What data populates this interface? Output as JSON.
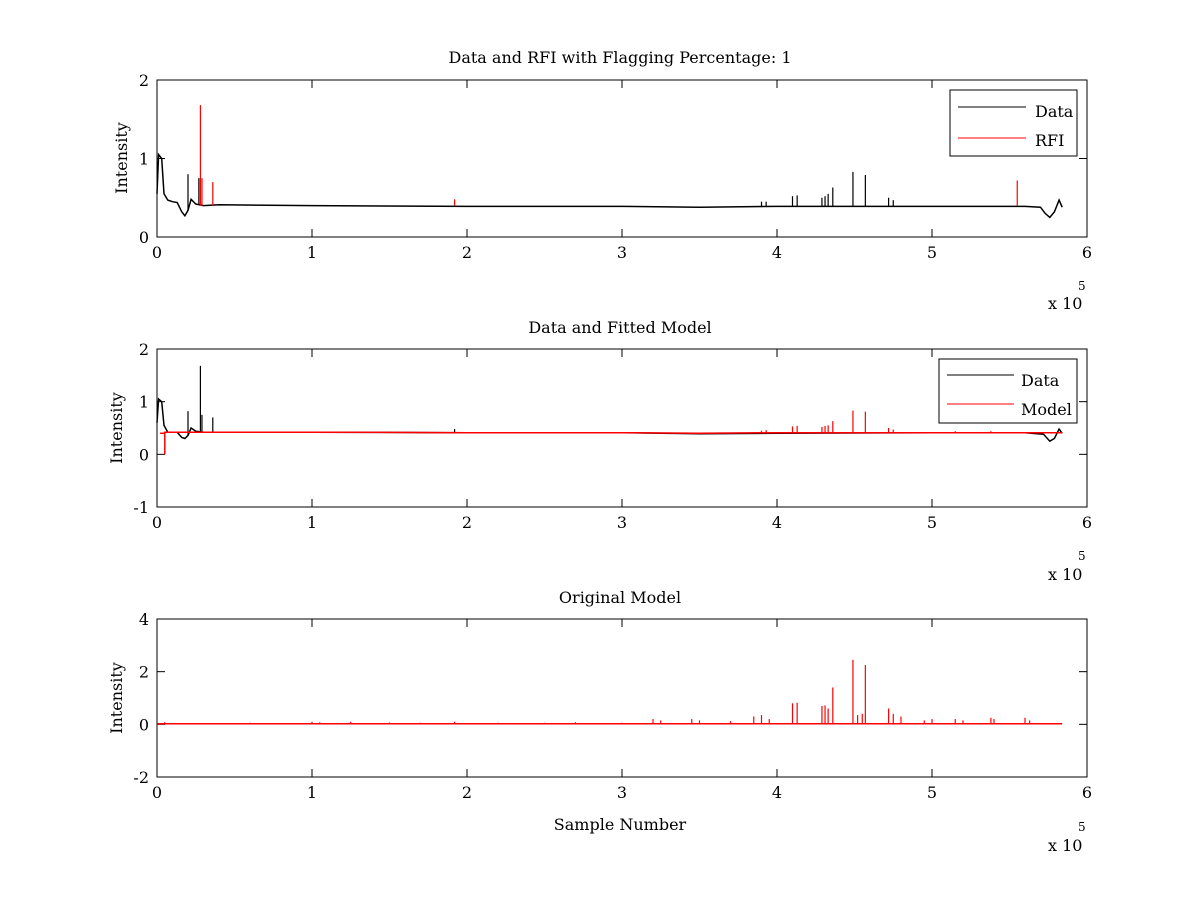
{
  "colors": {
    "data": "#000000",
    "rfi": "#ff0000",
    "model": "#ff0000",
    "background": "#ffffff"
  },
  "chart_data": [
    {
      "type": "line",
      "title": "Data and RFI with Flagging Percentage: 1",
      "xlabel": "",
      "ylabel": "Intensity",
      "xlim": [
        0,
        6
      ],
      "ylim": [
        0,
        2
      ],
      "xticks": [
        "0",
        "1",
        "2",
        "3",
        "4",
        "5",
        "6"
      ],
      "yticks": [
        "0",
        "1",
        "2"
      ],
      "x_multiplier": {
        "base": "x 10",
        "exponent": "5"
      },
      "legend": {
        "position": "top-right",
        "entries": [
          "Data",
          "RFI"
        ]
      },
      "series": [
        {
          "name": "Data",
          "color": "#000000",
          "baseline": [
            [
              0.0,
              0.55
            ],
            [
              0.01,
              1.05
            ],
            [
              0.03,
              1.0
            ],
            [
              0.045,
              0.55
            ],
            [
              0.07,
              0.47
            ],
            [
              0.1,
              0.45
            ],
            [
              0.13,
              0.44
            ],
            [
              0.16,
              0.32
            ],
            [
              0.18,
              0.27
            ],
            [
              0.2,
              0.34
            ],
            [
              0.22,
              0.48
            ],
            [
              0.25,
              0.42
            ],
            [
              0.3,
              0.4
            ],
            [
              0.4,
              0.41
            ],
            [
              1.0,
              0.4
            ],
            [
              2.0,
              0.39
            ],
            [
              3.0,
              0.39
            ],
            [
              3.5,
              0.38
            ],
            [
              4.0,
              0.39
            ],
            [
              5.0,
              0.39
            ],
            [
              5.6,
              0.39
            ],
            [
              5.7,
              0.38
            ],
            [
              5.73,
              0.3
            ],
            [
              5.76,
              0.25
            ],
            [
              5.79,
              0.32
            ],
            [
              5.82,
              0.47
            ],
            [
              5.84,
              0.38
            ]
          ],
          "spikes": [
            [
              0.2,
              0.8
            ],
            [
              0.27,
              0.75
            ],
            [
              4.1,
              0.52
            ],
            [
              4.13,
              0.53
            ],
            [
              4.29,
              0.5
            ],
            [
              4.31,
              0.52
            ],
            [
              4.33,
              0.55
            ],
            [
              4.36,
              0.63
            ],
            [
              4.49,
              0.83
            ],
            [
              4.57,
              0.79
            ],
            [
              4.72,
              0.5
            ],
            [
              4.75,
              0.47
            ],
            [
              3.9,
              0.45
            ],
            [
              3.93,
              0.45
            ]
          ]
        },
        {
          "name": "RFI",
          "color": "#ff0000",
          "spikes": [
            [
              0.28,
              1.68
            ],
            [
              0.29,
              0.75
            ],
            [
              0.36,
              0.7
            ],
            [
              1.92,
              0.48
            ],
            [
              5.55,
              0.72
            ]
          ]
        }
      ]
    },
    {
      "type": "line",
      "title": "Data and Fitted Model",
      "xlabel": "",
      "ylabel": "Intensity",
      "xlim": [
        0,
        6
      ],
      "ylim": [
        -1,
        2
      ],
      "xticks": [
        "0",
        "1",
        "2",
        "3",
        "4",
        "5",
        "6"
      ],
      "yticks": [
        "-1",
        "0",
        "1",
        "2"
      ],
      "x_multiplier": {
        "base": "x 10",
        "exponent": "5"
      },
      "legend": {
        "position": "top-right",
        "entries": [
          "Data",
          "Model"
        ]
      },
      "series": [
        {
          "name": "Data",
          "color": "#000000",
          "baseline": [
            [
              0.0,
              0.6
            ],
            [
              0.01,
              1.05
            ],
            [
              0.03,
              1.0
            ],
            [
              0.045,
              0.55
            ],
            [
              0.07,
              0.42
            ],
            [
              0.13,
              0.42
            ],
            [
              0.16,
              0.32
            ],
            [
              0.18,
              0.3
            ],
            [
              0.2,
              0.36
            ],
            [
              0.22,
              0.5
            ],
            [
              0.25,
              0.44
            ],
            [
              0.3,
              0.42
            ],
            [
              1.0,
              0.42
            ],
            [
              2.0,
              0.41
            ],
            [
              3.0,
              0.41
            ],
            [
              3.5,
              0.39
            ],
            [
              4.0,
              0.4
            ],
            [
              5.0,
              0.41
            ],
            [
              5.6,
              0.41
            ],
            [
              5.72,
              0.38
            ],
            [
              5.76,
              0.25
            ],
            [
              5.79,
              0.3
            ],
            [
              5.82,
              0.48
            ],
            [
              5.84,
              0.4
            ]
          ],
          "spikes": [
            [
              0.2,
              0.82
            ],
            [
              0.28,
              1.68
            ],
            [
              0.29,
              0.75
            ],
            [
              0.36,
              0.7
            ],
            [
              1.92,
              0.48
            ]
          ]
        },
        {
          "name": "Model",
          "color": "#ff0000",
          "baseline": [
            [
              0.02,
              0.4
            ],
            [
              0.05,
              0.4
            ],
            [
              0.05,
              0.0
            ],
            [
              0.05,
              0.42
            ],
            [
              0.3,
              0.42
            ],
            [
              1.0,
              0.42
            ],
            [
              2.0,
              0.41
            ],
            [
              3.0,
              0.41
            ],
            [
              3.5,
              0.4
            ],
            [
              4.0,
              0.41
            ],
            [
              5.0,
              0.41
            ],
            [
              5.6,
              0.41
            ],
            [
              5.84,
              0.41
            ]
          ],
          "spikes": [
            [
              4.1,
              0.53
            ],
            [
              4.13,
              0.54
            ],
            [
              4.29,
              0.52
            ],
            [
              4.31,
              0.54
            ],
            [
              4.33,
              0.55
            ],
            [
              4.36,
              0.63
            ],
            [
              4.49,
              0.83
            ],
            [
              4.57,
              0.81
            ],
            [
              4.72,
              0.5
            ],
            [
              4.75,
              0.47
            ],
            [
              3.9,
              0.45
            ],
            [
              3.93,
              0.46
            ],
            [
              5.15,
              0.44
            ],
            [
              5.38,
              0.44
            ]
          ]
        }
      ]
    },
    {
      "type": "line",
      "title": "Original Model",
      "xlabel": "Sample Number",
      "ylabel": "Intensity",
      "xlim": [
        0,
        6
      ],
      "ylim": [
        -2,
        4
      ],
      "xticks": [
        "0",
        "1",
        "2",
        "3",
        "4",
        "5",
        "6"
      ],
      "yticks": [
        "-2",
        "0",
        "2",
        "4"
      ],
      "x_multiplier": {
        "base": "x 10",
        "exponent": "5"
      },
      "series": [
        {
          "color": "#ff0000",
          "baseline": [
            [
              0.0,
              0.02
            ],
            [
              5.84,
              0.02
            ]
          ],
          "spikes": [
            [
              0.05,
              0.08
            ],
            [
              0.3,
              0.05
            ],
            [
              0.6,
              0.06
            ],
            [
              0.82,
              0.05
            ],
            [
              1.0,
              0.1
            ],
            [
              1.05,
              0.08
            ],
            [
              1.25,
              0.1
            ],
            [
              1.5,
              0.07
            ],
            [
              1.7,
              0.06
            ],
            [
              1.92,
              0.1
            ],
            [
              2.2,
              0.06
            ],
            [
              2.5,
              0.06
            ],
            [
              2.7,
              0.08
            ],
            [
              3.0,
              0.06
            ],
            [
              3.2,
              0.2
            ],
            [
              3.25,
              0.15
            ],
            [
              3.45,
              0.2
            ],
            [
              3.5,
              0.15
            ],
            [
              3.7,
              0.12
            ],
            [
              3.85,
              0.3
            ],
            [
              3.9,
              0.35
            ],
            [
              3.95,
              0.2
            ],
            [
              4.1,
              0.8
            ],
            [
              4.13,
              0.82
            ],
            [
              4.29,
              0.7
            ],
            [
              4.31,
              0.72
            ],
            [
              4.33,
              0.6
            ],
            [
              4.36,
              1.4
            ],
            [
              4.49,
              2.45
            ],
            [
              4.52,
              0.35
            ],
            [
              4.55,
              0.4
            ],
            [
              4.57,
              2.25
            ],
            [
              4.72,
              0.6
            ],
            [
              4.75,
              0.4
            ],
            [
              4.8,
              0.3
            ],
            [
              4.95,
              0.15
            ],
            [
              5.0,
              0.2
            ],
            [
              5.15,
              0.2
            ],
            [
              5.2,
              0.15
            ],
            [
              5.38,
              0.25
            ],
            [
              5.4,
              0.2
            ],
            [
              5.6,
              0.25
            ],
            [
              5.63,
              0.15
            ]
          ]
        }
      ]
    }
  ]
}
